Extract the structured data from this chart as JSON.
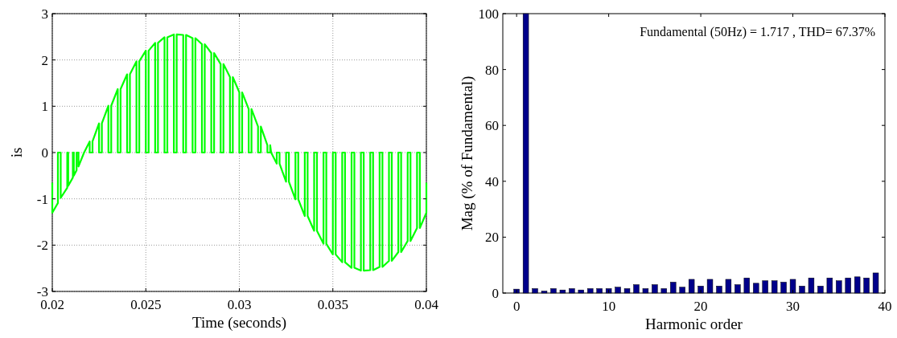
{
  "chart_data": [
    {
      "type": "line",
      "xlabel": "Time (seconds)",
      "ylabel": "is",
      "xlim": [
        0.02,
        0.04
      ],
      "xticks": [
        0.02,
        0.025,
        0.03,
        0.035,
        0.04
      ],
      "ylim": [
        -3,
        3
      ],
      "yticks": [
        -3,
        -2,
        -1,
        0,
        1,
        2,
        3
      ],
      "grid": true,
      "marker": "none",
      "line_style": "solid",
      "series": [
        {
          "color": "#00ff00",
          "x": [
            0.02,
            0.02,
            0.0203,
            0.0203,
            0.02045,
            0.02045,
            0.0208,
            0.0208,
            0.02085,
            0.02085,
            0.0211,
            0.0211,
            0.02115,
            0.02115,
            0.0213,
            0.0213,
            0.0214,
            0.0214,
            0.0217,
            0.022,
            0.022,
            0.02215,
            0.02215,
            0.0225,
            0.0225,
            0.02265,
            0.02265,
            0.023,
            0.023,
            0.02315,
            0.02315,
            0.0235,
            0.0235,
            0.02365,
            0.02365,
            0.024,
            0.024,
            0.02415,
            0.02415,
            0.0245,
            0.0245,
            0.02465,
            0.02465,
            0.025,
            0.025,
            0.02515,
            0.02515,
            0.0255,
            0.0255,
            0.02565,
            0.02565,
            0.026,
            0.026,
            0.02615,
            0.02615,
            0.0265,
            0.0265,
            0.02665,
            0.02665,
            0.027,
            0.027,
            0.02715,
            0.02715,
            0.0275,
            0.0275,
            0.02765,
            0.02765,
            0.028,
            0.028,
            0.02815,
            0.02815,
            0.0285,
            0.0285,
            0.02865,
            0.02865,
            0.029,
            0.029,
            0.02915,
            0.02915,
            0.0295,
            0.0295,
            0.02965,
            0.02965,
            0.03,
            0.03,
            0.03015,
            0.03015,
            0.0305,
            0.0305,
            0.03065,
            0.03065,
            0.031,
            0.031,
            0.03115,
            0.03115,
            0.0315,
            0.0315,
            0.03165,
            0.03165,
            0.0317,
            0.032,
            0.032,
            0.03215,
            0.03215,
            0.0325,
            0.0325,
            0.03265,
            0.03265,
            0.033,
            0.033,
            0.03315,
            0.03315,
            0.0335,
            0.0335,
            0.03365,
            0.03365,
            0.034,
            0.034,
            0.03415,
            0.03415,
            0.0345,
            0.0345,
            0.03465,
            0.03465,
            0.035,
            0.035,
            0.03515,
            0.03515,
            0.0355,
            0.0355,
            0.03565,
            0.03565,
            0.036,
            0.036,
            0.03615,
            0.03615,
            0.0365,
            0.0365,
            0.03665,
            0.03665,
            0.037,
            0.037,
            0.03715,
            0.03715,
            0.0375,
            0.0375,
            0.03765,
            0.03765,
            0.038,
            0.038,
            0.03815,
            0.03815,
            0.0385,
            0.0385,
            0.03865,
            0.03865,
            0.039,
            0.039,
            0.03915,
            0.03915,
            0.0395,
            0.0395,
            0.03965,
            0.03965,
            0.04,
            0.04
          ],
          "values": [
            -0.65,
            -1.3,
            -1.09,
            0,
            0,
            -0.98,
            -0.76,
            0,
            0,
            -0.72,
            -0.54,
            0,
            0,
            -0.5,
            -0.38,
            0,
            0,
            -0.3,
            0,
            0.24,
            0,
            0,
            0.24,
            0.63,
            0,
            0,
            0.63,
            1.01,
            0,
            0,
            1.01,
            1.37,
            0,
            0,
            1.37,
            1.69,
            0,
            0,
            1.69,
            1.97,
            0,
            0,
            1.97,
            2.2,
            0,
            0,
            2.2,
            2.37,
            0,
            0,
            2.37,
            2.49,
            0,
            0,
            2.49,
            2.55,
            0,
            0,
            2.55,
            2.54,
            0,
            0,
            2.54,
            2.47,
            0,
            0,
            2.47,
            2.34,
            0,
            0,
            2.34,
            2.15,
            0,
            0,
            2.15,
            1.91,
            0,
            0,
            1.91,
            1.63,
            0,
            0,
            1.63,
            1.3,
            0,
            0,
            1.3,
            0.94,
            0,
            0,
            0.94,
            0.56,
            0,
            0,
            0.56,
            0.16,
            0,
            0,
            0.16,
            0,
            -0.24,
            0,
            0,
            -0.24,
            -0.63,
            0,
            0,
            -0.63,
            -1.01,
            0,
            0,
            -1.01,
            -1.37,
            0,
            0,
            -1.37,
            -1.69,
            0,
            0,
            -1.69,
            -1.97,
            0,
            0,
            -1.97,
            -2.2,
            0,
            0,
            -2.2,
            -2.37,
            0,
            0,
            -2.37,
            -2.49,
            0,
            0,
            -2.49,
            -2.55,
            0,
            0,
            -2.55,
            -2.54,
            0,
            0,
            -2.54,
            -2.47,
            0,
            0,
            -2.47,
            -2.34,
            0,
            0,
            -2.34,
            -2.15,
            0,
            0,
            -2.15,
            -1.91,
            0,
            0,
            -1.91,
            -1.63,
            0,
            0,
            -1.63,
            -1.3,
            -0.65
          ]
        }
      ]
    },
    {
      "type": "bar",
      "xlabel": "Harmonic order",
      "ylabel": "Mag (% of Fundamental)",
      "xlim": [
        -1.5,
        40
      ],
      "xticks": [
        0,
        10,
        20,
        30,
        40
      ],
      "ylim": [
        0,
        100
      ],
      "yticks": [
        0,
        20,
        40,
        60,
        80,
        100
      ],
      "grid": false,
      "annotations": [
        "Fundamental (50Hz) = 1.717 , THD= 67.37%"
      ],
      "x": [
        0,
        1,
        2,
        3,
        4,
        5,
        6,
        7,
        8,
        9,
        10,
        11,
        12,
        13,
        14,
        15,
        16,
        17,
        18,
        19,
        20,
        21,
        22,
        23,
        24,
        25,
        26,
        27,
        28,
        29,
        30,
        31,
        32,
        33,
        34,
        35,
        36,
        37,
        38,
        39
      ],
      "series": [
        {
          "color": "#00008b",
          "values": [
            1.4,
            100,
            1.6,
            0.7,
            1.6,
            1.1,
            1.6,
            1.1,
            1.6,
            1.6,
            1.6,
            2.1,
            1.6,
            3.0,
            1.6,
            3.0,
            1.6,
            3.9,
            2.1,
            4.9,
            2.5,
            4.9,
            2.5,
            4.9,
            3.0,
            5.4,
            3.5,
            4.4,
            4.4,
            3.9,
            4.9,
            2.5,
            5.4,
            2.5,
            5.4,
            4.4,
            5.4,
            5.8,
            5.4,
            7.2
          ]
        }
      ]
    }
  ]
}
